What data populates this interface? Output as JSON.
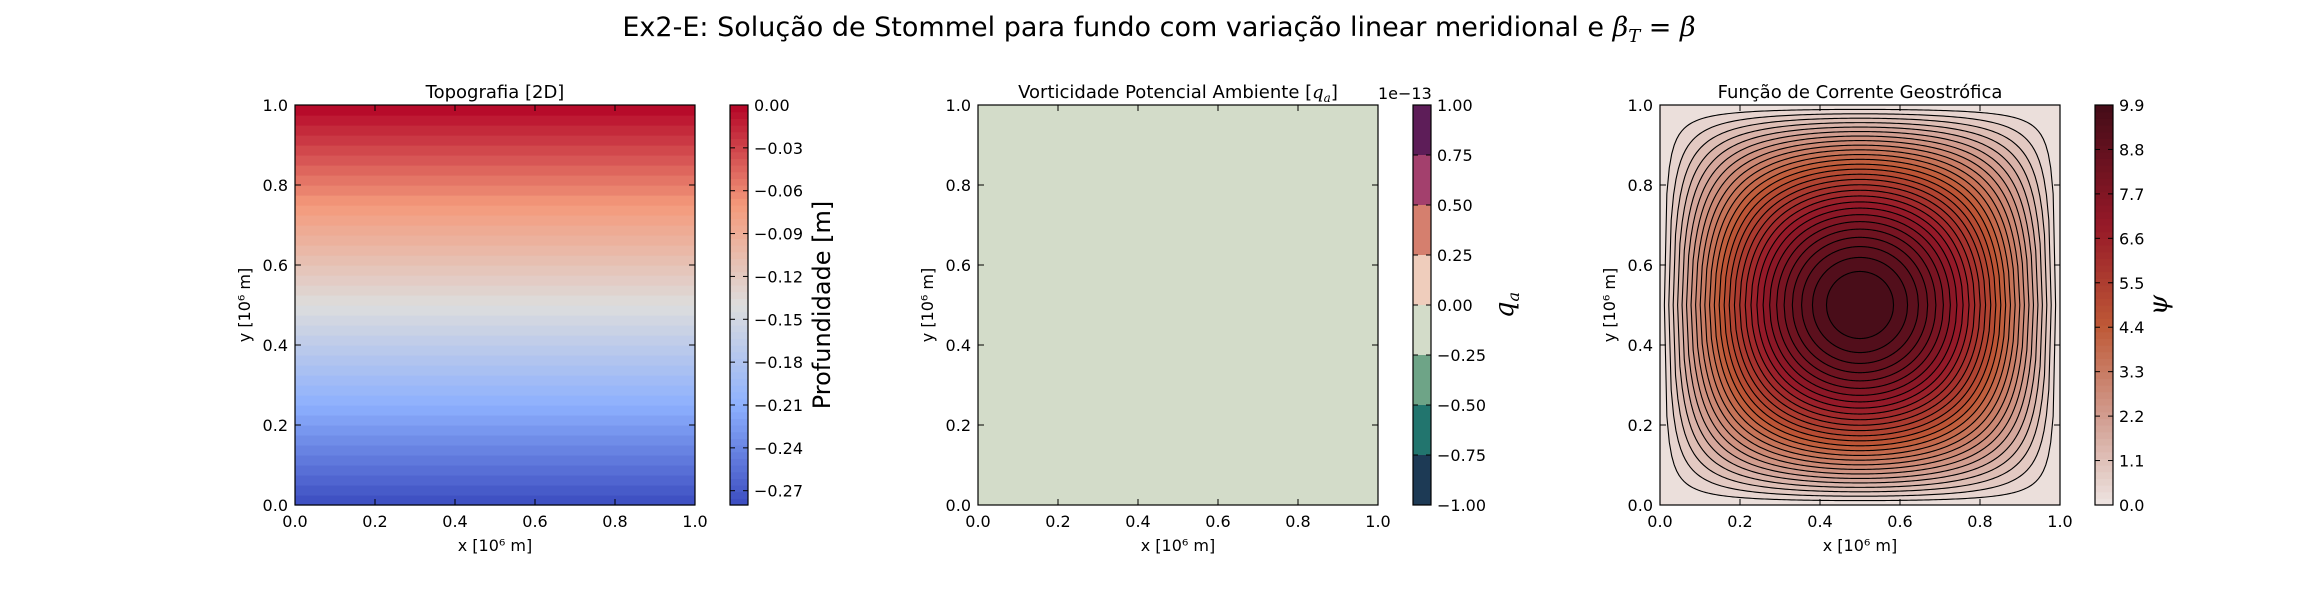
{
  "figure": {
    "suptitle_prefix": "Ex2-E: Solução de Stommel para fundo com variação linear meridional e ",
    "suptitle_math_lhs": "β",
    "suptitle_math_sub": "T",
    "suptitle_eq": " = ",
    "suptitle_math_rhs": "β"
  },
  "chart_data": [
    {
      "type": "heatmap",
      "title": "Topografia [2D]",
      "xlabel": "x [10⁶ m]",
      "ylabel": "y [10⁶ m]",
      "xlim": [
        0,
        1
      ],
      "ylim": [
        0,
        1
      ],
      "xticks": [
        "0.0",
        "0.2",
        "0.4",
        "0.6",
        "0.8",
        "1.0"
      ],
      "yticks": [
        "0.0",
        "0.2",
        "0.4",
        "0.6",
        "0.8",
        "1.0"
      ],
      "field": "depth varies linearly with y: -0.28 m at y=0 to 0.0 m at y=1",
      "z_at_y0": -0.28,
      "z_at_y1": 0.0,
      "colormap": "coolwarm",
      "colorbar": {
        "label": "Profundidade [m]",
        "range": [
          -0.28,
          0.0
        ],
        "ticks": [
          "0.00",
          "−0.03",
          "−0.06",
          "−0.09",
          "−0.12",
          "−0.15",
          "−0.18",
          "−0.21",
          "−0.24",
          "−0.27"
        ],
        "tick_values": [
          0.0,
          -0.03,
          -0.06,
          -0.09,
          -0.12,
          -0.15,
          -0.18,
          -0.21,
          -0.24,
          -0.27
        ]
      }
    },
    {
      "type": "heatmap",
      "title": "Vorticidade Potencial Ambiente [",
      "title_math": "q",
      "title_math_sub": "a",
      "title_close": "]",
      "xlabel": "x [10⁶ m]",
      "ylabel": "y [10⁶ m]",
      "xlim": [
        0,
        1
      ],
      "ylim": [
        0,
        1
      ],
      "xticks": [
        "0.0",
        "0.2",
        "0.4",
        "0.6",
        "0.8",
        "1.0"
      ],
      "yticks": [
        "0.0",
        "0.2",
        "0.4",
        "0.6",
        "0.8",
        "1.0"
      ],
      "field": "uniform q_a = 0 everywhere",
      "fill_color": "#d3dcc9",
      "colorbar": {
        "label": "q",
        "label_sub": "a",
        "offset_text": "1e−13",
        "ticks": [
          "1.00",
          "0.75",
          "0.50",
          "0.25",
          "0.00",
          "−0.25",
          "−0.50",
          "−0.75",
          "−1.00"
        ],
        "tick_values": [
          1.0,
          0.75,
          0.5,
          0.25,
          0.0,
          -0.25,
          -0.5,
          -0.75,
          -1.0
        ],
        "bins": [
          {
            "from": 0.75,
            "to": 1.0,
            "color": "#5d1d58"
          },
          {
            "from": 0.5,
            "to": 0.75,
            "color": "#a3406d"
          },
          {
            "from": 0.25,
            "to": 0.5,
            "color": "#d57f6e"
          },
          {
            "from": 0.0,
            "to": 0.25,
            "color": "#efcdbc"
          },
          {
            "from": -0.25,
            "to": 0.0,
            "color": "#d3dcc9"
          },
          {
            "from": -0.5,
            "to": -0.25,
            "color": "#6ea487"
          },
          {
            "from": -0.75,
            "to": -0.5,
            "color": "#22756e"
          },
          {
            "from": -1.0,
            "to": -0.75,
            "color": "#1d3a55"
          }
        ]
      }
    },
    {
      "type": "contour",
      "title": "Função de Corrente Geostrófica",
      "xlabel": "x [10⁶ m]",
      "ylabel": "y [10⁶ m]",
      "xlim": [
        0,
        1
      ],
      "ylim": [
        0,
        1
      ],
      "xticks": [
        "0.0",
        "0.2",
        "0.4",
        "0.6",
        "0.8",
        "1.0"
      ],
      "yticks": [
        "0.0",
        "0.2",
        "0.4",
        "0.6",
        "0.8",
        "1.0"
      ],
      "field": "psi = 9.9 * sin(pi x) * sin(pi y), maximum 9.9 at (0.5, 0.5), 0 on boundaries",
      "psi_max": 9.9,
      "contour_levels": 28,
      "colorbar": {
        "label": "ψ",
        "range": [
          0.0,
          9.9
        ],
        "ticks": [
          "9.9",
          "8.8",
          "7.7",
          "6.6",
          "5.5",
          "4.4",
          "3.3",
          "2.2",
          "1.1",
          "0.0"
        ],
        "tick_values": [
          9.9,
          8.8,
          7.7,
          6.6,
          5.5,
          4.4,
          3.3,
          2.2,
          1.1,
          0.0
        ]
      }
    }
  ]
}
